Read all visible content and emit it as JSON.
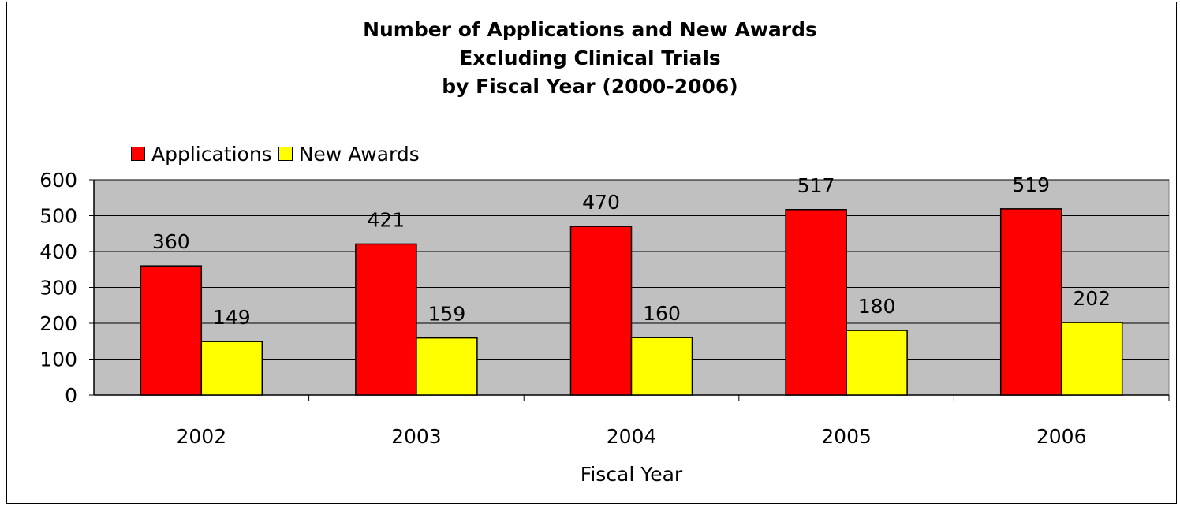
{
  "chart_data": {
    "type": "bar",
    "title": [
      "Number of Applications and New Awards",
      "Excluding Clinical Trials",
      "by Fiscal Year (2000-2006)"
    ],
    "categories": [
      "2002",
      "2003",
      "2004",
      "2005",
      "2006"
    ],
    "series": [
      {
        "name": "Applications",
        "values": [
          360,
          421,
          470,
          517,
          519
        ],
        "color": "#ff0000"
      },
      {
        "name": "New Awards",
        "values": [
          149,
          159,
          160,
          180,
          202
        ],
        "color": "#ffff00"
      }
    ],
    "xlabel": "Fiscal Year",
    "ylabel": "",
    "ylim": [
      0,
      600
    ],
    "yticks": [
      0,
      100,
      200,
      300,
      400,
      500,
      600
    ],
    "grid": true,
    "plot_background": "#c0c0c0",
    "legend_position": "top-left"
  }
}
